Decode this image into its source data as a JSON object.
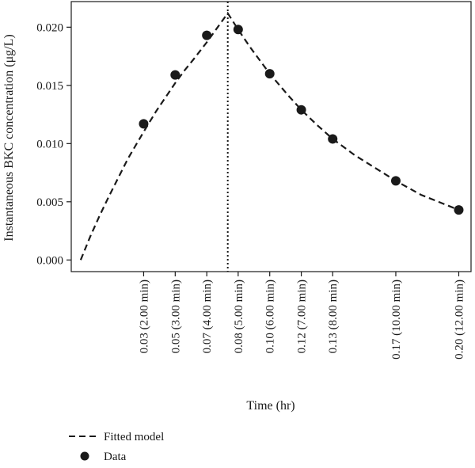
{
  "chart_data": {
    "type": "scatter",
    "xlabel": "Time (hr)",
    "ylabel": "Instantaneous BKC concentration (μg/L)",
    "ylim": [
      -0.001,
      0.0222
    ],
    "xlim": [
      -0.005,
      0.2065
    ],
    "y_ticks": [
      {
        "value": 0.0,
        "label": "0.000"
      },
      {
        "value": 0.005,
        "label": "0.005"
      },
      {
        "value": 0.01,
        "label": "0.010"
      },
      {
        "value": 0.015,
        "label": "0.015"
      },
      {
        "value": 0.02,
        "label": "0.020"
      }
    ],
    "x_ticks": [
      {
        "value": 0.0333,
        "label": "0.03 (2.00 min)"
      },
      {
        "value": 0.05,
        "label": "0.05 (3.00 min)"
      },
      {
        "value": 0.0667,
        "label": "0.07 (4.00 min)"
      },
      {
        "value": 0.0833,
        "label": "0.08 (5.00 min)"
      },
      {
        "value": 0.1,
        "label": "0.10 (6.00 min)"
      },
      {
        "value": 0.1167,
        "label": "0.12 (7.00 min)"
      },
      {
        "value": 0.1333,
        "label": "0.13 (8.00 min)"
      },
      {
        "value": 0.1667,
        "label": "0.17 (10.00 min)"
      },
      {
        "value": 0.2,
        "label": "0.20 (12.00 min)"
      }
    ],
    "vline_x": 0.0778,
    "series": [
      {
        "name": "Fitted model",
        "style": "dashed-line",
        "x": [
          0.0,
          0.005,
          0.01,
          0.015,
          0.02,
          0.025,
          0.03,
          0.0333,
          0.04,
          0.045,
          0.05,
          0.055,
          0.06,
          0.0667,
          0.072,
          0.0778,
          0.0833,
          0.09,
          0.1,
          0.11,
          0.1167,
          0.125,
          0.1333,
          0.145,
          0.1667,
          0.18,
          0.2
        ],
        "y": [
          0.0,
          0.002,
          0.0038,
          0.0055,
          0.0071,
          0.0087,
          0.0101,
          0.011,
          0.0128,
          0.014,
          0.0152,
          0.0163,
          0.0173,
          0.0187,
          0.0199,
          0.0212,
          0.0198,
          0.0182,
          0.016,
          0.0141,
          0.0129,
          0.0116,
          0.0104,
          0.009,
          0.0068,
          0.0056,
          0.0043
        ]
      },
      {
        "name": "Data",
        "style": "points",
        "x": [
          0.0333,
          0.05,
          0.0667,
          0.0833,
          0.1,
          0.1167,
          0.1333,
          0.1667,
          0.2
        ],
        "y": [
          0.0117,
          0.0159,
          0.0193,
          0.0198,
          0.016,
          0.0129,
          0.0104,
          0.0068,
          0.0043
        ]
      }
    ],
    "legend_position": "bottom-left",
    "legend": [
      {
        "label": "Fitted model",
        "symbol": "dashed-line"
      },
      {
        "label": "Data",
        "symbol": "dot"
      }
    ],
    "grid": false,
    "colors": {
      "ink": "#1a1a1a"
    }
  }
}
